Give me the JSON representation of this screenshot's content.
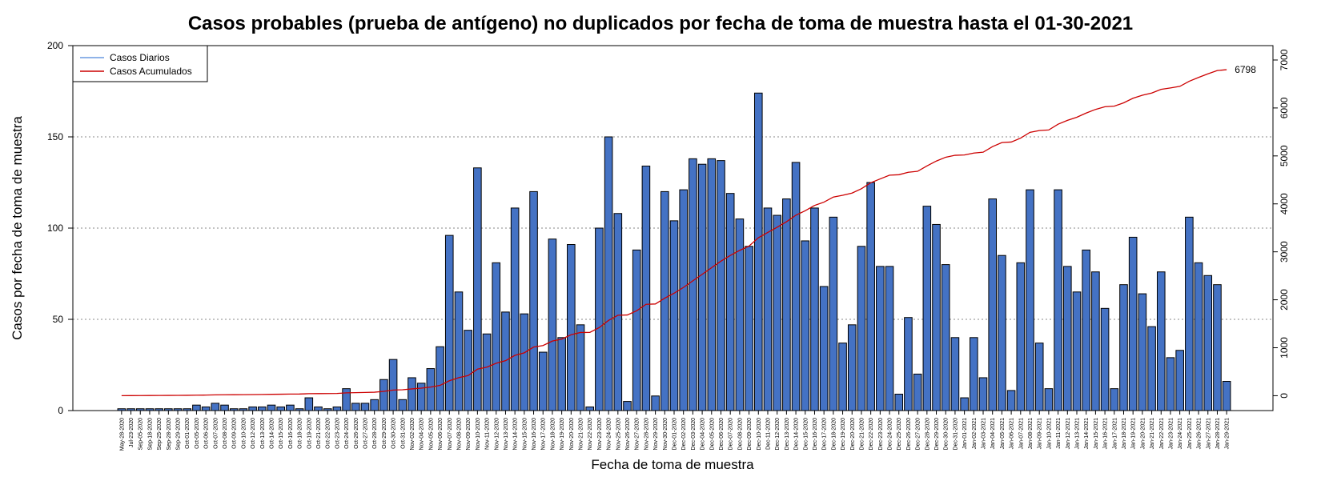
{
  "chart_data": {
    "type": "bar",
    "title": "Casos probables (prueba de antígeno) no duplicados por fecha de toma de muestra hasta el 01-30-2021",
    "xlabel": "Fecha de toma de muestra",
    "ylabel": "Casos por fecha de toma de muestra",
    "ylim": [
      0,
      200
    ],
    "yticks": [
      0,
      50,
      100,
      150,
      200
    ],
    "y2lim": [
      -310,
      7300
    ],
    "y2ticks": [
      0,
      1000,
      2000,
      3000,
      4000,
      5000,
      6000,
      7000
    ],
    "grid": "horizontal dotted at 50, 100, 150",
    "legend_position": "top-left",
    "end_label": "6798",
    "categories": [
      "May-28-2020",
      "Jul-23-2020",
      "Sep-05-2020",
      "Sep-18-2020",
      "Sep-25-2020",
      "Sep-28-2020",
      "Sep-29-2020",
      "Oct-01-2020",
      "Oct-05-2020",
      "Oct-06-2020",
      "Oct-07-2020",
      "Oct-08-2020",
      "Oct-09-2020",
      "Oct-10-2020",
      "Oct-12-2020",
      "Oct-13-2020",
      "Oct-14-2020",
      "Oct-15-2020",
      "Oct-16-2020",
      "Oct-18-2020",
      "Oct-19-2020",
      "Oct-21-2020",
      "Oct-22-2020",
      "Oct-23-2020",
      "Oct-24-2020",
      "Oct-26-2020",
      "Oct-27-2020",
      "Oct-28-2020",
      "Oct-29-2020",
      "Oct-30-2020",
      "Oct-31-2020",
      "Nov-02-2020",
      "Nov-04-2020",
      "Nov-05-2020",
      "Nov-06-2020",
      "Nov-07-2020",
      "Nov-08-2020",
      "Nov-09-2020",
      "Nov-10-2020",
      "Nov-11-2020",
      "Nov-12-2020",
      "Nov-13-2020",
      "Nov-14-2020",
      "Nov-15-2020",
      "Nov-16-2020",
      "Nov-17-2020",
      "Nov-18-2020",
      "Nov-19-2020",
      "Nov-20-2020",
      "Nov-21-2020",
      "Nov-22-2020",
      "Nov-23-2020",
      "Nov-24-2020",
      "Nov-25-2020",
      "Nov-26-2020",
      "Nov-27-2020",
      "Nov-28-2020",
      "Nov-29-2020",
      "Nov-30-2020",
      "Dec-01-2020",
      "Dec-02-2020",
      "Dec-03-2020",
      "Dec-04-2020",
      "Dec-05-2020",
      "Dec-06-2020",
      "Dec-07-2020",
      "Dec-08-2020",
      "Dec-09-2020",
      "Dec-10-2020",
      "Dec-11-2020",
      "Dec-12-2020",
      "Dec-13-2020",
      "Dec-14-2020",
      "Dec-15-2020",
      "Dec-16-2020",
      "Dec-17-2020",
      "Dec-18-2020",
      "Dec-19-2020",
      "Dec-20-2020",
      "Dec-21-2020",
      "Dec-22-2020",
      "Dec-23-2020",
      "Dec-24-2020",
      "Dec-25-2020",
      "Dec-26-2020",
      "Dec-27-2020",
      "Dec-28-2020",
      "Dec-29-2020",
      "Dec-30-2020",
      "Dec-31-2020",
      "Jan-01-2021",
      "Jan-02-2021",
      "Jan-03-2021",
      "Jan-04-2021",
      "Jan-05-2021",
      "Jan-06-2021",
      "Jan-07-2021",
      "Jan-08-2021",
      "Jan-09-2021",
      "Jan-10-2021",
      "Jan-11-2021",
      "Jan-12-2021",
      "Jan-13-2021",
      "Jan-14-2021",
      "Jan-15-2021",
      "Jan-16-2021",
      "Jan-17-2021",
      "Jan-18-2021",
      "Jan-19-2021",
      "Jan-20-2021",
      "Jan-21-2021",
      "Jan-22-2021",
      "Jan-23-2021",
      "Jan-24-2021",
      "Jan-25-2021",
      "Jan-26-2021",
      "Jan-27-2021",
      "Jan-28-2021",
      "Jan-29-2021"
    ],
    "series": [
      {
        "name": "Casos Diarios",
        "axis": "left",
        "color": "#4472C4",
        "legend_color": "#6a9ae0",
        "values": [
          1,
          1,
          1,
          1,
          1,
          1,
          1,
          1,
          3,
          2,
          4,
          3,
          1,
          1,
          2,
          2,
          3,
          2,
          3,
          1,
          7,
          2,
          1,
          2,
          12,
          4,
          4,
          6,
          17,
          28,
          6,
          18,
          15,
          23,
          35,
          96,
          65,
          44,
          133,
          42,
          81,
          54,
          111,
          53,
          120,
          32,
          94,
          40,
          91,
          47,
          2,
          100,
          150,
          108,
          5,
          88,
          134,
          8,
          120,
          104,
          121,
          138,
          135,
          138,
          137,
          119,
          105,
          90,
          174,
          111,
          107,
          116,
          136,
          93,
          111,
          68,
          106,
          37,
          47,
          90,
          125,
          79,
          79,
          9,
          51,
          20,
          112,
          102,
          80,
          40,
          7,
          40,
          18,
          116,
          85,
          11,
          81,
          121,
          37,
          12,
          121,
          79,
          65,
          88,
          76,
          56,
          12,
          69,
          95,
          64,
          46,
          76,
          29,
          33,
          106,
          81,
          74,
          69,
          16
        ]
      },
      {
        "name": "Casos Acumulados",
        "axis": "right",
        "color": "#cc0000",
        "values": [
          1,
          2,
          3,
          4,
          5,
          6,
          7,
          8,
          11,
          13,
          17,
          20,
          21,
          22,
          24,
          26,
          29,
          31,
          34,
          35,
          42,
          44,
          45,
          47,
          59,
          63,
          67,
          73,
          90,
          118,
          124,
          142,
          157,
          180,
          215,
          311,
          376,
          420,
          553,
          595,
          676,
          730,
          841,
          894,
          1014,
          1046,
          1140,
          1180,
          1271,
          1318,
          1320,
          1420,
          1570,
          1678,
          1683,
          1771,
          1905,
          1913,
          2033,
          2137,
          2258,
          2396,
          2531,
          2669,
          2806,
          2925,
          3030,
          3120,
          3294,
          3405,
          3512,
          3628,
          3764,
          3857,
          3968,
          4036,
          4142,
          4179,
          4226,
          4316,
          4441,
          4520,
          4599,
          4608,
          4659,
          4679,
          4791,
          4893,
          4973,
          5013,
          5020,
          5060,
          5078,
          5194,
          5279,
          5290,
          5371,
          5492,
          5529,
          5541,
          5662,
          5741,
          5806,
          5894,
          5970,
          6026,
          6038,
          6107,
          6202,
          6266,
          6312,
          6388,
          6417,
          6450,
          6556,
          6637,
          6711,
          6780,
          6798
        ]
      }
    ]
  }
}
